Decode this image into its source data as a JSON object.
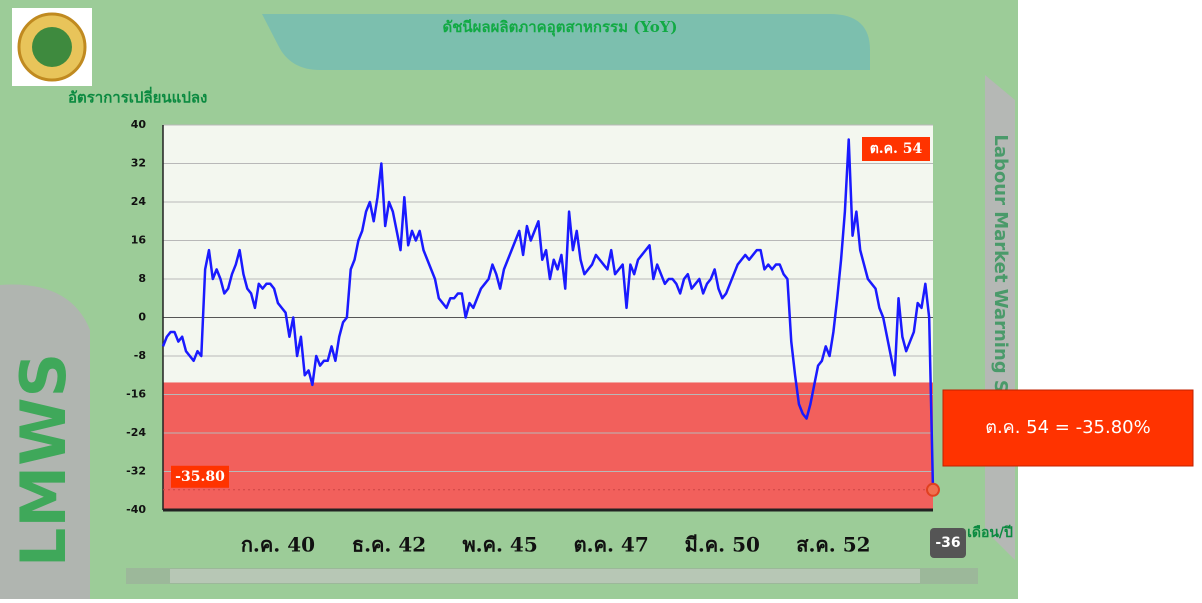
{
  "chart_data": {
    "type": "line",
    "title": "ดัชนีผลผลิตภาคอุตสาหกรรม (YoY)",
    "y_label": "อัตราการเปลี่ยนแปลง",
    "x_label": "เดือน/ปี",
    "side_title": "Labour Market Warning Systems",
    "brand": "LMWS",
    "annotations": {
      "last_period": "ต.ค. 54",
      "last_value": "-35.80",
      "badge": "-36",
      "tooltip": "ต.ค. 54 = -35.80%"
    },
    "color": "#1a1aff",
    "danger_zone": [
      -40,
      -13.5
    ],
    "ylim": [
      -40,
      40
    ],
    "yticks": [
      40,
      32,
      24,
      16,
      8,
      0,
      -8,
      -16,
      -24,
      -32,
      -40
    ],
    "grid": true,
    "categories": [
      null,
      null,
      null,
      null,
      null,
      null,
      null,
      null,
      null,
      null,
      null,
      null,
      null,
      null,
      null,
      null,
      null,
      null,
      null,
      null,
      null,
      null,
      null,
      null,
      null,
      null,
      null,
      null,
      null,
      null,
      "ก.ค. 40",
      null,
      null,
      null,
      null,
      null,
      null,
      null,
      null,
      null,
      null,
      null,
      null,
      null,
      null,
      null,
      null,
      null,
      null,
      null,
      null,
      null,
      null,
      null,
      null,
      null,
      null,
      null,
      null,
      "ธ.ค. 42",
      null,
      null,
      null,
      null,
      null,
      null,
      null,
      null,
      null,
      null,
      null,
      null,
      null,
      null,
      null,
      null,
      null,
      null,
      null,
      null,
      null,
      null,
      null,
      null,
      null,
      null,
      null,
      null,
      "พ.ค. 45",
      null,
      null,
      null,
      null,
      null,
      null,
      null,
      null,
      null,
      null,
      null,
      null,
      null,
      null,
      null,
      null,
      null,
      null,
      null,
      null,
      null,
      null,
      null,
      null,
      null,
      null,
      null,
      null,
      "ต.ค. 47",
      null,
      null,
      null,
      null,
      null,
      null,
      null,
      null,
      null,
      null,
      null,
      null,
      null,
      null,
      null,
      null,
      null,
      null,
      null,
      null,
      null,
      null,
      null,
      null,
      null,
      null,
      null,
      null,
      "มี.ค. 50",
      null,
      null,
      null,
      null,
      null,
      null,
      null,
      null,
      null,
      null,
      null,
      null,
      null,
      null,
      null,
      null,
      null,
      null,
      null,
      null,
      null,
      null,
      null,
      null,
      null,
      null,
      null,
      null,
      "ส.ค. 52",
      null,
      null,
      null,
      null,
      null,
      null,
      null,
      null,
      null,
      null,
      null,
      null,
      null,
      null,
      null,
      null,
      null,
      null,
      null,
      null,
      null,
      null,
      null,
      null,
      null,
      null
    ],
    "values": [
      -6,
      -4,
      -3,
      -3,
      -5,
      -4,
      -7,
      -8,
      -9,
      -7,
      -8,
      10,
      14,
      8,
      10,
      8,
      5,
      6,
      9,
      11,
      14,
      9,
      6,
      5,
      2,
      7,
      6,
      7,
      7,
      6,
      3,
      2,
      1,
      -4,
      0,
      -8,
      -4,
      -12,
      -11,
      -14,
      -8,
      -10,
      -9,
      -9,
      -6,
      -9,
      -4,
      -1,
      0,
      10,
      12,
      16,
      18,
      22,
      24,
      20,
      25,
      32,
      19,
      24,
      22,
      18,
      14,
      25,
      15,
      18,
      16,
      18,
      14,
      12,
      10,
      8,
      4,
      3,
      2,
      4,
      4,
      5,
      5,
      0,
      3,
      2,
      4,
      6,
      7,
      8,
      11,
      9,
      6,
      10,
      12,
      14,
      16,
      18,
      13,
      19,
      16,
      18,
      20,
      12,
      14,
      8,
      12,
      10,
      13,
      6,
      22,
      14,
      18,
      12,
      9,
      10,
      11,
      13,
      12,
      11,
      10,
      14,
      9,
      10,
      11,
      2,
      11,
      9,
      12,
      13,
      14,
      15,
      8,
      11,
      9,
      7,
      8,
      8,
      7,
      5,
      8,
      9,
      6,
      7,
      8,
      5,
      7,
      8,
      10,
      6,
      4,
      5,
      7,
      9,
      11,
      12,
      13,
      12,
      13,
      14,
      14,
      10,
      11,
      10,
      11,
      11,
      9,
      8,
      -5,
      -12,
      -18,
      -20,
      -21,
      -18,
      -14,
      -10,
      -9,
      -6,
      -8,
      -3,
      4,
      12,
      22,
      37,
      17,
      22,
      14,
      11,
      8,
      7,
      6,
      2,
      0,
      -4,
      -8,
      -12,
      4,
      -4,
      -7,
      -5,
      -3,
      3,
      2,
      7,
      0,
      -35.8
    ]
  }
}
